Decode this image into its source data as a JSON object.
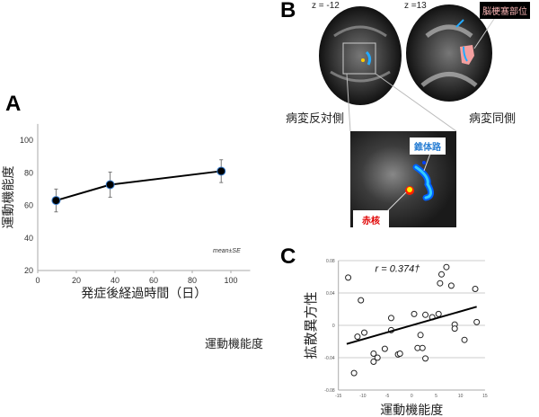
{
  "panels": {
    "a": "A",
    "b": "B",
    "c": "C"
  },
  "panel_b": {
    "slice_left": "z = -12",
    "slice_right": "z =13",
    "label_contralateral": "病変反対側",
    "label_ipsilateral": "病変同側",
    "label_infarct": "脳梗塞部位",
    "label_pyramidal": "錐体路",
    "label_red_nucleus": "赤核"
  },
  "stray_label": "運動機能度",
  "colors": {
    "pyramidal": "#2a7fd4",
    "red_nucleus": "#e00000",
    "infarct_fill": "#f4a0a0"
  },
  "chart_data": [
    {
      "type": "line",
      "title": "",
      "xlabel": "発症後経過時間（日）",
      "ylabel": "運動機能度",
      "xlim": [
        0,
        110
      ],
      "ylim": [
        20,
        110
      ],
      "xticks": [
        0,
        20,
        40,
        60,
        80,
        100
      ],
      "yticks": [
        20,
        40,
        60,
        80,
        100
      ],
      "annotation": "mean±SE",
      "x": [
        9.5,
        37.5,
        95
      ],
      "y": [
        63,
        72.7,
        81
      ],
      "error": [
        7,
        7.7,
        7
      ],
      "grid": false
    },
    {
      "type": "scatter",
      "xlabel": "運動機能度",
      "ylabel": "拡散異方性",
      "annotation": "r = 0.374†",
      "xlim": [
        -15,
        15
      ],
      "ylim": [
        -0.08,
        0.08
      ],
      "xticks": [
        -15,
        -10,
        -5,
        0,
        5,
        10,
        15
      ],
      "yticks": [
        -0.08,
        -0.04,
        0,
        0.04,
        0.08
      ],
      "ytick_labels": [
        "-0.08",
        "-0.04",
        "0",
        "0.04",
        "0.08"
      ],
      "grid": true,
      "points": [
        [
          -13.0,
          0.059
        ],
        [
          -10.4,
          0.031
        ],
        [
          -4.2,
          0.009
        ],
        [
          0.5,
          0.014
        ],
        [
          2.8,
          0.013
        ],
        [
          4.2,
          0.01
        ],
        [
          5.5,
          0.014
        ],
        [
          5.8,
          0.052
        ],
        [
          6.1,
          0.063
        ],
        [
          7.1,
          0.072
        ],
        [
          8.1,
          0.049
        ],
        [
          13.0,
          0.045
        ],
        [
          13.3,
          0.004
        ],
        [
          8.8,
          0.001
        ],
        [
          8.8,
          -0.004
        ],
        [
          10.8,
          -0.018
        ],
        [
          -11.1,
          -0.014
        ],
        [
          -9.7,
          -0.009
        ],
        [
          -4.2,
          -0.006
        ],
        [
          1.8,
          -0.012
        ],
        [
          -5.5,
          -0.029
        ],
        [
          1.2,
          -0.028
        ],
        [
          2.2,
          -0.028
        ],
        [
          2.8,
          -0.041
        ],
        [
          -7.8,
          -0.035
        ],
        [
          -7.0,
          -0.04
        ],
        [
          -7.8,
          -0.045
        ],
        [
          -2.8,
          -0.036
        ],
        [
          -2.4,
          -0.035
        ],
        [
          -11.8,
          -0.059
        ]
      ],
      "fit_line": [
        [
          -13.3,
          -0.023
        ],
        [
          13.3,
          0.023
        ]
      ]
    }
  ]
}
